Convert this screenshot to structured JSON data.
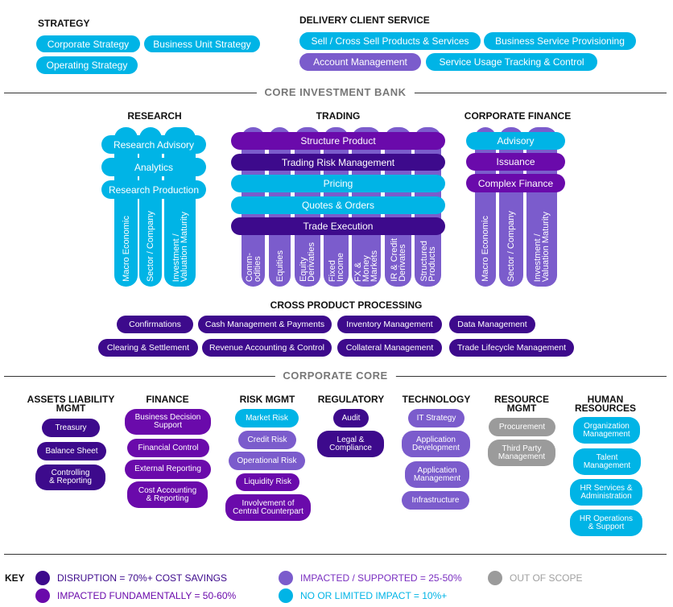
{
  "colors": {
    "disruption": "#3d0a8c",
    "fundamental": "#6a0aab",
    "supported": "#7b5ccc",
    "limited": "#00b4e6",
    "out": "#9b9b9b"
  },
  "strategy": {
    "title": "STRATEGY",
    "items": [
      {
        "label": "Corporate Strategy",
        "level": "limited"
      },
      {
        "label": "Business Unit Strategy",
        "level": "limited"
      },
      {
        "label": "Operating Strategy",
        "level": "limited"
      }
    ]
  },
  "delivery": {
    "title": "DELIVERY CLIENT SERVICE",
    "items": [
      {
        "label": "Sell / Cross Sell Products & Services",
        "level": "limited"
      },
      {
        "label": "Business Service Provisioning",
        "level": "limited"
      },
      {
        "label": "Account Management",
        "level": "supported"
      },
      {
        "label": "Service Usage Tracking & Control",
        "level": "limited"
      }
    ]
  },
  "core_investment_bank": {
    "title": "CORE INVESTMENT BANK",
    "research": {
      "title": "RESEARCH",
      "items": [
        {
          "label": "Research Advisory",
          "level": "limited"
        },
        {
          "label": "Analytics",
          "level": "limited"
        },
        {
          "label": "Research Production",
          "level": "limited"
        }
      ],
      "columns": [
        {
          "label": "Macro Economic",
          "level": "limited"
        },
        {
          "label": "Sector / Company",
          "level": "limited"
        },
        {
          "label": "Investment /\nValuation Maturity",
          "level": "limited"
        }
      ]
    },
    "trading": {
      "title": "TRADING",
      "items": [
        {
          "label": "Structure Product",
          "level": "fundamental"
        },
        {
          "label": "Trading Risk Management",
          "level": "disruption"
        },
        {
          "label": "Pricing",
          "level": "limited"
        },
        {
          "label": "Quotes & Orders",
          "level": "limited"
        },
        {
          "label": "Trade Execution",
          "level": "disruption"
        }
      ],
      "columns": [
        {
          "label": "Comm-\nodities",
          "level": "supported"
        },
        {
          "label": "Equities",
          "level": "supported"
        },
        {
          "label": "Equity\nDerivaties",
          "level": "supported"
        },
        {
          "label": "Fixed\nIncome",
          "level": "supported"
        },
        {
          "label": "FX &\nMoney\nMarkets",
          "level": "supported"
        },
        {
          "label": "IR & Credit\nDerivates",
          "level": "supported"
        },
        {
          "label": "Structured\nProducts",
          "level": "supported"
        }
      ]
    },
    "corporate_finance": {
      "title": "CORPORATE FINANCE",
      "items": [
        {
          "label": "Advisory",
          "level": "limited"
        },
        {
          "label": "Issuance",
          "level": "fundamental"
        },
        {
          "label": "Complex Finance",
          "level": "fundamental"
        }
      ],
      "columns": [
        {
          "label": "Macro Economic",
          "level": "supported"
        },
        {
          "label": "Sector / Company",
          "level": "supported"
        },
        {
          "label": "Investment /\nValuation Maturity",
          "level": "supported"
        }
      ]
    },
    "cross_product": {
      "title": "CROSS PRODUCT PROCESSING",
      "items": [
        {
          "label": "Confirmations",
          "level": "disruption"
        },
        {
          "label": "Cash Management & Payments",
          "level": "disruption"
        },
        {
          "label": "Inventory Management",
          "level": "disruption"
        },
        {
          "label": "Data Management",
          "level": "disruption"
        },
        {
          "label": "Clearing & Settlement",
          "level": "disruption"
        },
        {
          "label": "Revenue Accounting & Control",
          "level": "disruption"
        },
        {
          "label": "Collateral Management",
          "level": "disruption"
        },
        {
          "label": "Trade Lifecycle Management",
          "level": "disruption"
        }
      ]
    }
  },
  "corporate_core": {
    "title": "CORPORATE CORE",
    "groups": [
      {
        "title": "ASSETS LIABILITY\nMGMT",
        "items": [
          {
            "label": "Treasury",
            "level": "disruption"
          },
          {
            "label": "Balance Sheet",
            "level": "disruption"
          },
          {
            "label": "Controlling\n& Reporting",
            "level": "disruption"
          }
        ]
      },
      {
        "title": "FINANCE",
        "items": [
          {
            "label": "Business Decision\nSupport",
            "level": "fundamental"
          },
          {
            "label": "Financial Control",
            "level": "fundamental"
          },
          {
            "label": "External Reporting",
            "level": "fundamental"
          },
          {
            "label": "Cost Accounting\n& Reporting",
            "level": "fundamental"
          }
        ]
      },
      {
        "title": "RISK MGMT",
        "items": [
          {
            "label": "Market Risk",
            "level": "limited"
          },
          {
            "label": "Credit Risk",
            "level": "supported"
          },
          {
            "label": "Operational Risk",
            "level": "supported"
          },
          {
            "label": "Liquidity Risk",
            "level": "fundamental"
          },
          {
            "label": "Involvement of\nCentral Counterpart",
            "level": "fundamental"
          }
        ]
      },
      {
        "title": "REGULATORY",
        "items": [
          {
            "label": "Audit",
            "level": "disruption"
          },
          {
            "label": "Legal &\nCompliance",
            "level": "disruption"
          }
        ]
      },
      {
        "title": "TECHNOLOGY",
        "items": [
          {
            "label": "IT Strategy",
            "level": "supported"
          },
          {
            "label": "Application\nDevelopment",
            "level": "supported"
          },
          {
            "label": "Application\nManagement",
            "level": "supported"
          },
          {
            "label": "Infrastructure",
            "level": "supported"
          }
        ]
      },
      {
        "title": "RESOURCE\nMGMT",
        "items": [
          {
            "label": "Procurement",
            "level": "out"
          },
          {
            "label": "Third Party\nManagement",
            "level": "out"
          }
        ]
      },
      {
        "title": "HUMAN\nRESOURCES",
        "items": [
          {
            "label": "Organization\nManagement",
            "level": "limited"
          },
          {
            "label": "Talent\nManagement",
            "level": "limited"
          },
          {
            "label": "HR Services &\nAdministration",
            "level": "limited"
          },
          {
            "label": "HR Operations\n& Support",
            "level": "limited"
          }
        ]
      }
    ]
  },
  "key": {
    "title": "KEY",
    "items": [
      {
        "label": "DISRUPTION = 70%+ COST SAVINGS",
        "level": "disruption",
        "text_color": "#3d0a8c"
      },
      {
        "label": "IMPACTED FUNDAMENTALLY = 50-60%",
        "level": "fundamental",
        "text_color": "#6a0aab"
      },
      {
        "label": "IMPACTED / SUPPORTED = 25-50%",
        "level": "supported",
        "text_color": "#7a2fc0"
      },
      {
        "label": "NO OR LIMITED IMPACT = 10%+",
        "level": "limited",
        "text_color": "#00b4e6"
      },
      {
        "label": "OUT OF SCOPE",
        "level": "out",
        "text_color": "#a0a0a0"
      }
    ]
  }
}
